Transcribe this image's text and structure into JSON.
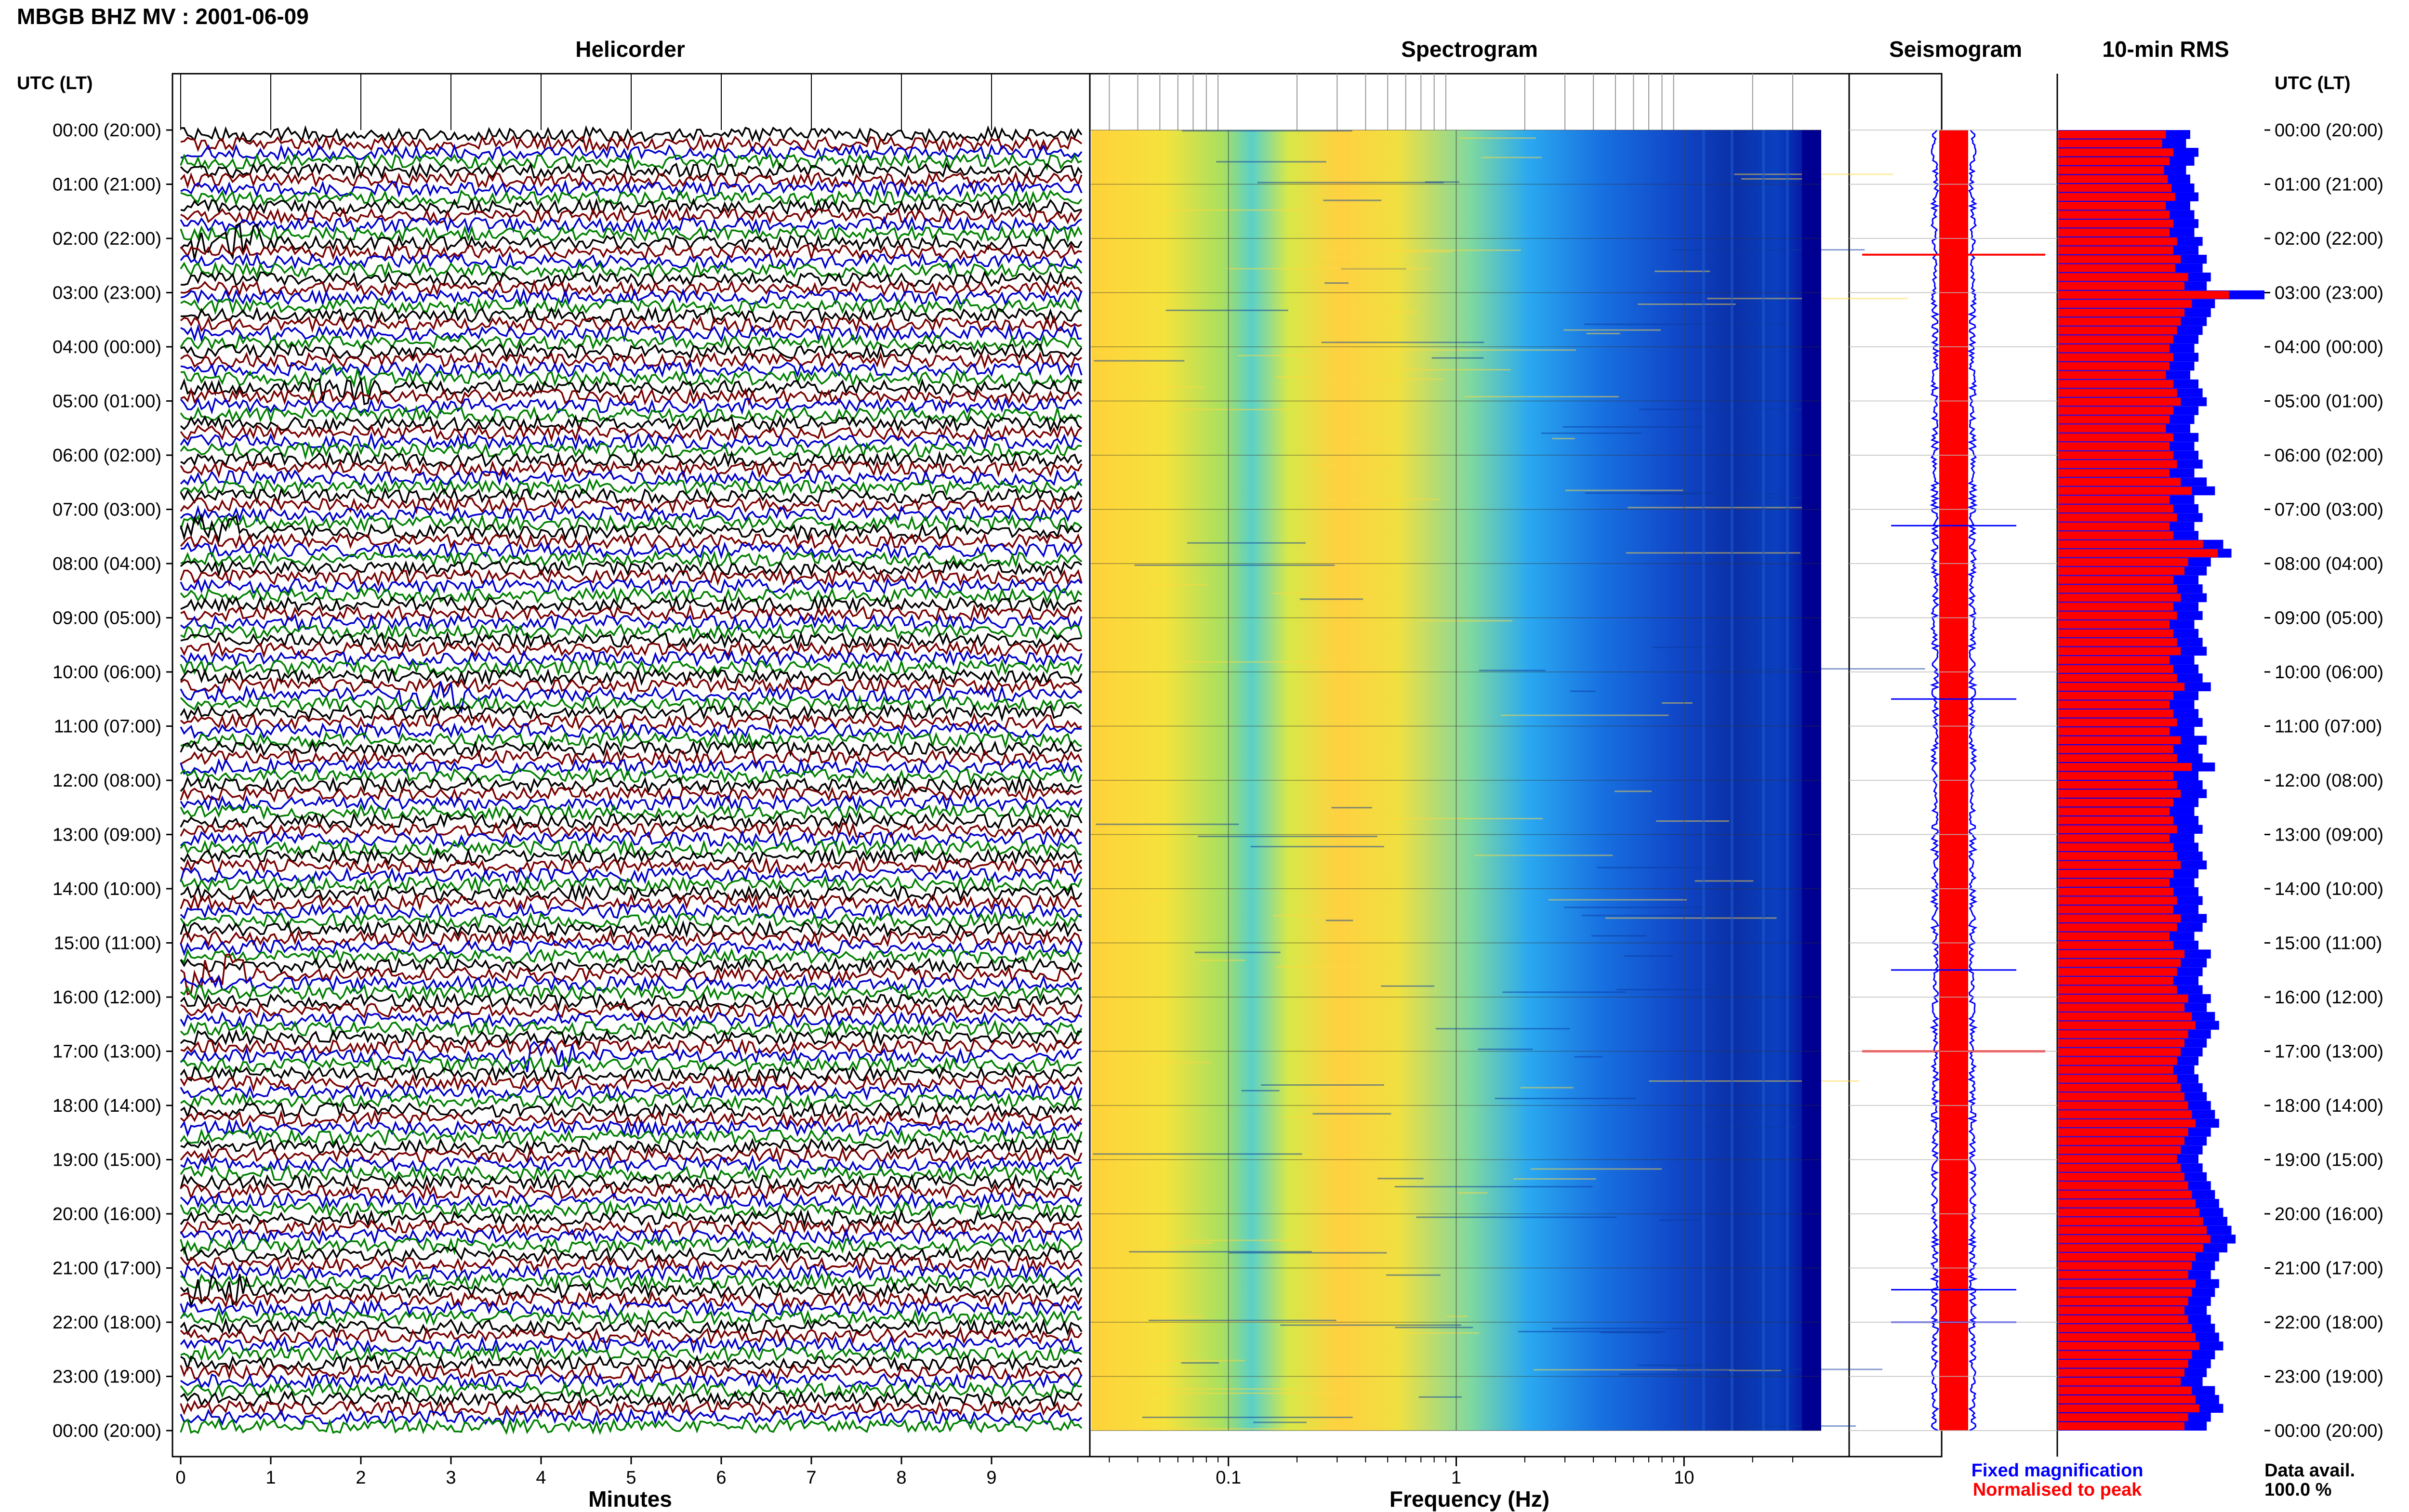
{
  "title": "MBGB BHZ MV : 2001-06-09",
  "headers": {
    "helicorder": "Helicorder",
    "spectrogram": "Spectrogram",
    "seismogram": "Seismogram",
    "rms": "10-min RMS"
  },
  "time_axis_label": "UTC (LT)",
  "time_labels": [
    "00:00 (20:00)",
    "01:00 (21:00)",
    "02:00 (22:00)",
    "03:00 (23:00)",
    "04:00 (00:00)",
    "05:00 (01:00)",
    "06:00 (02:00)",
    "07:00 (03:00)",
    "08:00 (04:00)",
    "09:00 (05:00)",
    "10:00 (06:00)",
    "11:00 (07:00)",
    "12:00 (08:00)",
    "13:00 (09:00)",
    "14:00 (10:00)",
    "15:00 (11:00)",
    "16:00 (12:00)",
    "17:00 (13:00)",
    "18:00 (14:00)",
    "19:00 (15:00)",
    "20:00 (16:00)",
    "21:00 (17:00)",
    "22:00 (18:00)",
    "23:00 (19:00)",
    "00:00 (20:00)"
  ],
  "legend": {
    "fixed": "Fixed magnification",
    "normalised": "Normalised to peak"
  },
  "data_avail": {
    "label": "Data avail.",
    "value": "100.0 %"
  },
  "colors": {
    "trace_cycle": [
      "#000000",
      "#7a0000",
      "#0000cc",
      "#008000"
    ],
    "seis_fixed": "#0000ff",
    "seis_norm": "#ff0000",
    "rms_fixed": "#0000ff",
    "rms_norm": "#ff0000",
    "spec_low": "#000080",
    "spec_high": "#ffff00"
  },
  "chart_data": [
    {
      "type": "line",
      "panel": "helicorder",
      "xlabel": "Minutes",
      "x_ticks": [
        "0",
        "1",
        "2",
        "3",
        "4",
        "5",
        "6",
        "7",
        "8",
        "9"
      ],
      "xlim": [
        0,
        10
      ],
      "rows_per_hour": 6,
      "hours": 24,
      "note_events": [
        {
          "hour": 2.0,
          "minute": 0.5,
          "amp": 3
        },
        {
          "hour": 4.6,
          "minute": 1.8,
          "amp": 2.5
        },
        {
          "hour": 7.3,
          "minute": 0.3,
          "amp": 2.5
        },
        {
          "hour": 10.3,
          "minute": 2.8,
          "amp": 2.5
        },
        {
          "hour": 15.5,
          "minute": 0.4,
          "amp": 3
        },
        {
          "hour": 17.0,
          "minute": 4.0,
          "amp": 2.5
        },
        {
          "hour": 21.4,
          "minute": 0.4,
          "amp": 2.5
        }
      ]
    },
    {
      "type": "heatmap",
      "panel": "spectrogram",
      "xlabel": "Frequency (Hz)",
      "x_scale": "log",
      "x_ticks": [
        "0.1",
        "1",
        "10"
      ],
      "xlim": [
        0.025,
        40
      ],
      "energy_peak_hz": 0.4,
      "rolloff_hz": 3
    },
    {
      "type": "area",
      "panel": "seismogram",
      "series": [
        {
          "name": "Fixed magnification",
          "spike_hours": [
            2.3,
            7.3,
            10.5,
            15.5,
            17.0,
            21.4,
            22.0
          ]
        },
        {
          "name": "Normalised to peak",
          "spike_hours": [
            2.3,
            17.0
          ]
        }
      ]
    },
    {
      "type": "bar",
      "panel": "10-min RMS",
      "series": [
        {
          "name": "Fixed magnification",
          "values": [
            0.58,
            0.56,
            0.62,
            0.6,
            0.57,
            0.59,
            0.61,
            0.63,
            0.58,
            0.6,
            0.62,
            0.6,
            0.64,
            0.62,
            0.66,
            0.63,
            0.7,
            0.68,
            0.92,
            0.72,
            0.68,
            0.66,
            0.64,
            0.62,
            0.6,
            0.62,
            0.6,
            0.58,
            0.62,
            0.64,
            0.66,
            0.62,
            0.6,
            0.58,
            0.62,
            0.6,
            0.62,
            0.64,
            0.6,
            0.66,
            0.72,
            0.6,
            0.62,
            0.64,
            0.6,
            0.62,
            0.78,
            0.86,
            0.7,
            0.68,
            0.62,
            0.64,
            0.66,
            0.62,
            0.64,
            0.6,
            0.62,
            0.64,
            0.66,
            0.6,
            0.62,
            0.64,
            0.68,
            0.62,
            0.6,
            0.62,
            0.64,
            0.6,
            0.66,
            0.62,
            0.64,
            0.72,
            0.62,
            0.64,
            0.66,
            0.62,
            0.6,
            0.62,
            0.64,
            0.6,
            0.62,
            0.64,
            0.66,
            0.62,
            0.6,
            0.62,
            0.64,
            0.62,
            0.66,
            0.64,
            0.6,
            0.62,
            0.68,
            0.66,
            0.64,
            0.62,
            0.64,
            0.7,
            0.68,
            0.72,
            0.74,
            0.7,
            0.68,
            0.66,
            0.64,
            0.62,
            0.64,
            0.66,
            0.68,
            0.7,
            0.72,
            0.74,
            0.7,
            0.68,
            0.66,
            0.64,
            0.66,
            0.68,
            0.7,
            0.72,
            0.74,
            0.76,
            0.78,
            0.8,
            0.82,
            0.78,
            0.74,
            0.72,
            0.7,
            0.74,
            0.72,
            0.7,
            0.68,
            0.7,
            0.72,
            0.74,
            0.76,
            0.72,
            0.7,
            0.68,
            0.66,
            0.72,
            0.74,
            0.76,
            0.7,
            0.68
          ]
        },
        {
          "name": "Normalised to peak",
          "values": [
            0.64,
            0.62,
            0.68,
            0.66,
            0.62,
            0.64,
            0.66,
            0.68,
            0.64,
            0.66,
            0.68,
            0.66,
            0.7,
            0.68,
            0.72,
            0.7,
            0.74,
            0.72,
            1.0,
            0.76,
            0.74,
            0.72,
            0.7,
            0.68,
            0.66,
            0.68,
            0.66,
            0.64,
            0.68,
            0.7,
            0.72,
            0.68,
            0.66,
            0.64,
            0.68,
            0.66,
            0.68,
            0.7,
            0.66,
            0.72,
            0.76,
            0.66,
            0.68,
            0.7,
            0.66,
            0.68,
            0.8,
            0.84,
            0.74,
            0.72,
            0.68,
            0.7,
            0.72,
            0.68,
            0.7,
            0.66,
            0.68,
            0.7,
            0.72,
            0.66,
            0.68,
            0.7,
            0.74,
            0.68,
            0.66,
            0.68,
            0.7,
            0.66,
            0.72,
            0.68,
            0.7,
            0.76,
            0.68,
            0.7,
            0.72,
            0.68,
            0.66,
            0.68,
            0.7,
            0.66,
            0.68,
            0.7,
            0.72,
            0.68,
            0.66,
            0.68,
            0.7,
            0.68,
            0.72,
            0.7,
            0.66,
            0.68,
            0.74,
            0.72,
            0.7,
            0.68,
            0.7,
            0.74,
            0.72,
            0.76,
            0.78,
            0.74,
            0.72,
            0.7,
            0.68,
            0.66,
            0.68,
            0.7,
            0.72,
            0.74,
            0.76,
            0.78,
            0.74,
            0.72,
            0.7,
            0.68,
            0.7,
            0.72,
            0.74,
            0.76,
            0.78,
            0.8,
            0.82,
            0.84,
            0.86,
            0.82,
            0.78,
            0.76,
            0.74,
            0.78,
            0.76,
            0.74,
            0.72,
            0.74,
            0.76,
            0.78,
            0.8,
            0.76,
            0.74,
            0.72,
            0.7,
            0.76,
            0.78,
            0.8,
            0.74,
            0.72
          ]
        }
      ]
    }
  ]
}
